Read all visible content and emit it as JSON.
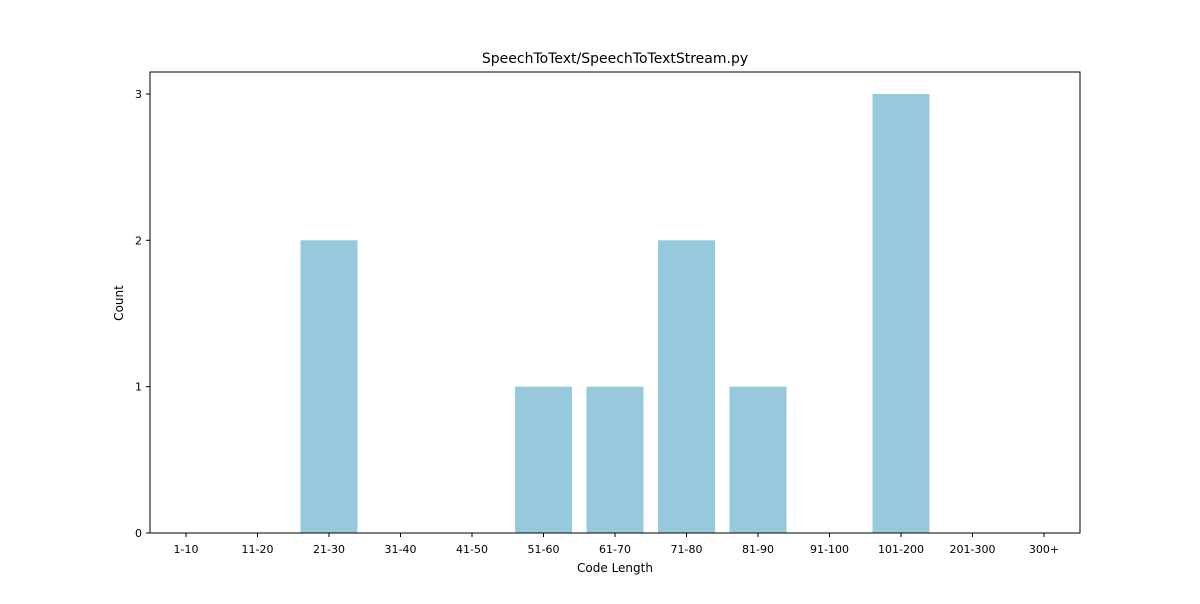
{
  "chart_data": {
    "type": "bar",
    "title": "SpeechToText/SpeechToTextStream.py",
    "xlabel": "Code Length",
    "ylabel": "Count",
    "categories": [
      "1-10",
      "11-20",
      "21-30",
      "31-40",
      "41-50",
      "51-60",
      "61-70",
      "71-80",
      "81-90",
      "91-100",
      "101-200",
      "201-300",
      "300+"
    ],
    "values": [
      0,
      0,
      2,
      0,
      0,
      1,
      1,
      2,
      1,
      0,
      3,
      0,
      0
    ],
    "ylim": [
      0,
      3.15
    ],
    "yticks": [
      0,
      1,
      2,
      3
    ],
    "grid": false,
    "legend": "none",
    "bar_color": "#96c9dc"
  }
}
